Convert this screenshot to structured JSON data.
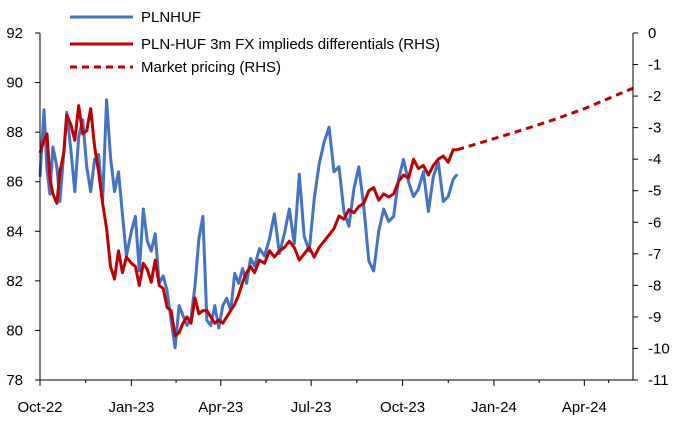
{
  "chart_data": {
    "type": "line",
    "title": "",
    "xlabel": "",
    "ylabel": "",
    "y2label": "",
    "x_ticks": [
      "Oct-22",
      "Jan-23",
      "Apr-23",
      "Jul-23",
      "Oct-23",
      "Jan-24",
      "Apr-24"
    ],
    "ylim": [
      78,
      92
    ],
    "y_ticks": [
      "78",
      "80",
      "82",
      "84",
      "86",
      "88",
      "90",
      "92"
    ],
    "y2lim": [
      -11,
      0
    ],
    "y2_ticks": [
      "-11",
      "-10",
      "-9",
      "-8",
      "-7",
      "-6",
      "-5",
      "-4",
      "-3",
      "-2",
      "-1",
      "0"
    ],
    "grid": false,
    "legend_position": "top-left",
    "series": [
      {
        "name": "PLNHUF",
        "axis": "left",
        "color": "#4472C4",
        "style": "solid",
        "x": [
          "2022-10-01",
          "2022-10-05",
          "2022-10-08",
          "2022-10-11",
          "2022-10-14",
          "2022-10-18",
          "2022-10-21",
          "2022-10-25",
          "2022-10-28",
          "2022-11-01",
          "2022-11-05",
          "2022-11-09",
          "2022-11-13",
          "2022-11-17",
          "2022-11-21",
          "2022-11-25",
          "2022-11-29",
          "2022-12-03",
          "2022-12-07",
          "2022-12-11",
          "2022-12-15",
          "2022-12-19",
          "2022-12-23",
          "2022-12-27",
          "2023-01-01",
          "2023-01-05",
          "2023-01-09",
          "2023-01-13",
          "2023-01-17",
          "2023-01-21",
          "2023-01-25",
          "2023-01-29",
          "2023-02-02",
          "2023-02-06",
          "2023-02-10",
          "2023-02-14",
          "2023-02-18",
          "2023-02-22",
          "2023-02-26",
          "2023-03-02",
          "2023-03-06",
          "2023-03-10",
          "2023-03-14",
          "2023-03-18",
          "2023-03-22",
          "2023-03-26",
          "2023-03-30",
          "2023-04-03",
          "2023-04-07",
          "2023-04-11",
          "2023-04-15",
          "2023-04-19",
          "2023-04-23",
          "2023-04-27",
          "2023-05-01",
          "2023-05-05",
          "2023-05-10",
          "2023-05-15",
          "2023-05-20",
          "2023-05-25",
          "2023-05-30",
          "2023-06-04",
          "2023-06-09",
          "2023-06-14",
          "2023-06-19",
          "2023-06-24",
          "2023-06-29",
          "2023-07-04",
          "2023-07-09",
          "2023-07-14",
          "2023-07-19",
          "2023-07-24",
          "2023-07-29",
          "2023-08-03",
          "2023-08-08",
          "2023-08-13",
          "2023-08-18",
          "2023-08-23",
          "2023-08-28",
          "2023-09-02",
          "2023-09-07",
          "2023-09-12",
          "2023-09-17",
          "2023-09-22",
          "2023-09-27",
          "2023-10-02",
          "2023-10-07",
          "2023-10-12",
          "2023-10-17",
          "2023-10-22",
          "2023-10-27",
          "2023-11-01",
          "2023-11-06",
          "2023-11-11",
          "2023-11-16",
          "2023-11-21",
          "2023-11-25"
        ],
        "values": [
          86.2,
          88.9,
          86.5,
          85.5,
          87.4,
          86.6,
          85.2,
          87.2,
          88.8,
          87.3,
          85.6,
          87.8,
          88.5,
          86.6,
          85.6,
          86.9,
          87.1,
          85.2,
          89.3,
          87.0,
          85.6,
          86.4,
          84.7,
          83.0,
          84.0,
          84.6,
          82.4,
          84.9,
          83.6,
          83.2,
          83.9,
          81.9,
          82.2,
          81.6,
          80.4,
          79.3,
          81.0,
          80.6,
          80.2,
          80.5,
          81.8,
          83.7,
          84.6,
          80.4,
          80.2,
          81.0,
          80.1,
          81.0,
          81.3,
          80.8,
          82.3,
          81.9,
          82.5,
          81.9,
          82.9,
          82.6,
          83.3,
          83.0,
          83.7,
          84.7,
          83.1,
          83.9,
          84.9,
          83.5,
          86.3,
          83.8,
          83.2,
          85.3,
          86.7,
          87.6,
          88.2,
          86.4,
          86.6,
          84.8,
          84.2,
          85.7,
          86.6,
          85.0,
          82.8,
          82.4,
          84.0,
          84.9,
          84.4,
          84.6,
          86.1,
          86.9,
          86.0,
          85.4,
          85.7,
          86.4,
          84.8,
          86.2,
          86.8,
          85.2,
          85.4,
          86.1,
          86.3
        ]
      },
      {
        "name": "PLN-HUF 3m FX implieds differentials (RHS)",
        "axis": "right",
        "color": "#C00000",
        "style": "solid",
        "x": [
          "2022-10-01",
          "2022-10-05",
          "2022-10-08",
          "2022-10-11",
          "2022-10-14",
          "2022-10-18",
          "2022-10-21",
          "2022-10-25",
          "2022-10-28",
          "2022-11-01",
          "2022-11-05",
          "2022-11-09",
          "2022-11-13",
          "2022-11-17",
          "2022-11-21",
          "2022-11-25",
          "2022-11-29",
          "2022-12-03",
          "2022-12-07",
          "2022-12-11",
          "2022-12-15",
          "2022-12-19",
          "2022-12-23",
          "2022-12-27",
          "2023-01-01",
          "2023-01-05",
          "2023-01-09",
          "2023-01-13",
          "2023-01-17",
          "2023-01-21",
          "2023-01-25",
          "2023-01-29",
          "2023-02-02",
          "2023-02-06",
          "2023-02-10",
          "2023-02-14",
          "2023-02-18",
          "2023-02-22",
          "2023-02-26",
          "2023-03-02",
          "2023-03-06",
          "2023-03-10",
          "2023-03-14",
          "2023-03-18",
          "2023-03-22",
          "2023-03-26",
          "2023-03-30",
          "2023-04-03",
          "2023-04-07",
          "2023-04-11",
          "2023-04-15",
          "2023-04-19",
          "2023-04-23",
          "2023-04-27",
          "2023-05-01",
          "2023-05-05",
          "2023-05-10",
          "2023-05-15",
          "2023-05-20",
          "2023-05-25",
          "2023-05-30",
          "2023-06-04",
          "2023-06-09",
          "2023-06-14",
          "2023-06-19",
          "2023-06-24",
          "2023-06-29",
          "2023-07-04",
          "2023-07-09",
          "2023-07-14",
          "2023-07-19",
          "2023-07-24",
          "2023-07-29",
          "2023-08-03",
          "2023-08-08",
          "2023-08-13",
          "2023-08-18",
          "2023-08-23",
          "2023-08-28",
          "2023-09-02",
          "2023-09-07",
          "2023-09-12",
          "2023-09-17",
          "2023-09-22",
          "2023-09-27",
          "2023-10-02",
          "2023-10-07",
          "2023-10-12",
          "2023-10-17",
          "2023-10-22",
          "2023-10-27",
          "2023-11-01",
          "2023-11-06",
          "2023-11-11",
          "2023-11-16",
          "2023-11-21",
          "2023-11-25"
        ],
        "values": [
          -3.8,
          -3.4,
          -3.2,
          -4.6,
          -5.1,
          -5.4,
          -4.4,
          -3.8,
          -2.6,
          -2.9,
          -3.4,
          -2.3,
          -3.2,
          -3.1,
          -2.4,
          -3.6,
          -4.4,
          -5.4,
          -6.2,
          -7.4,
          -7.8,
          -6.9,
          -7.6,
          -7.1,
          -7.3,
          -7.4,
          -8.0,
          -7.3,
          -7.5,
          -7.9,
          -7.2,
          -8.0,
          -8.1,
          -8.7,
          -8.8,
          -9.6,
          -9.5,
          -9.2,
          -9.0,
          -9.2,
          -8.4,
          -8.9,
          -8.8,
          -8.8,
          -9.0,
          -9.2,
          -9.1,
          -9.2,
          -9.0,
          -8.8,
          -8.6,
          -8.3,
          -7.9,
          -7.6,
          -7.4,
          -7.6,
          -7.2,
          -7.3,
          -6.9,
          -7.1,
          -6.9,
          -6.8,
          -6.6,
          -6.8,
          -7.2,
          -7.0,
          -6.8,
          -7.1,
          -6.8,
          -6.6,
          -6.4,
          -6.2,
          -5.8,
          -5.9,
          -5.6,
          -5.7,
          -5.5,
          -5.4,
          -5.0,
          -4.9,
          -5.3,
          -5.1,
          -5.2,
          -5.1,
          -4.7,
          -4.5,
          -4.6,
          -4.0,
          -4.3,
          -4.2,
          -4.5,
          -4.2,
          -4.0,
          -3.9,
          -4.1,
          -3.7,
          -3.7
        ]
      },
      {
        "name": "Market pricing (RHS)",
        "axis": "right",
        "color": "#C00000",
        "style": "dashed",
        "x": [
          "2023-11-25",
          "2024-01-01",
          "2024-02-01",
          "2024-03-01",
          "2024-04-01",
          "2024-05-01",
          "2024-05-20"
        ],
        "values": [
          -3.7,
          -3.35,
          -3.05,
          -2.75,
          -2.4,
          -2.0,
          -1.75
        ]
      }
    ]
  }
}
